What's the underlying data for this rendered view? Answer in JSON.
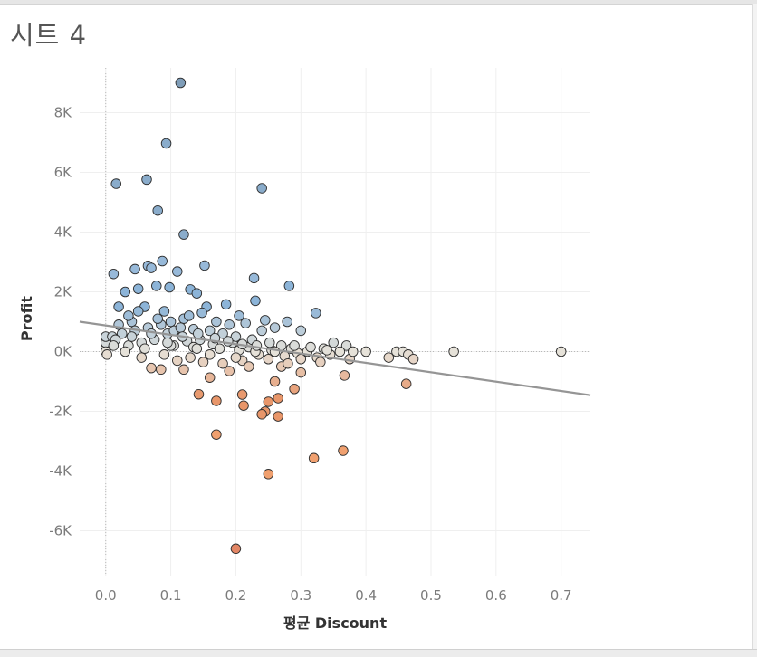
{
  "sheet": {
    "title": "시트 4"
  },
  "chart_data": {
    "type": "scatter",
    "title": "시트 4",
    "xlabel": "평균 Discount",
    "ylabel": "Profit",
    "xlim": [
      -0.04,
      0.745
    ],
    "ylim": [
      -7500,
      9500
    ],
    "x_ticks": [
      0.0,
      0.1,
      0.2,
      0.3,
      0.4,
      0.5,
      0.6,
      0.7
    ],
    "x_tick_labels": [
      "0.0",
      "0.1",
      "0.2",
      "0.3",
      "0.4",
      "0.5",
      "0.6",
      "0.7"
    ],
    "y_ticks": [
      -6000,
      -4000,
      -2000,
      0,
      2000,
      4000,
      6000,
      8000
    ],
    "y_tick_labels": [
      "-6K",
      "-4K",
      "-2K",
      "0K",
      "2K",
      "4K",
      "6K",
      "8K"
    ],
    "grid": true,
    "zero_line_x": true,
    "zero_line_y": true,
    "color_scale": {
      "negative": "#e8966a",
      "neutral": "#e6e2d9",
      "positive": "#8cb4d8"
    },
    "trend_line": {
      "color": "#959595",
      "x": [
        -0.04,
        0.745
      ],
      "y": [
        1000,
        -1460
      ]
    },
    "points": [
      [
        0.115,
        9000
      ],
      [
        0.093,
        6970
      ],
      [
        0.016,
        5620
      ],
      [
        0.063,
        5760
      ],
      [
        0.24,
        5470
      ],
      [
        0.08,
        4720
      ],
      [
        0.12,
        3920
      ],
      [
        0.087,
        3030
      ],
      [
        0.065,
        2870
      ],
      [
        0.07,
        2800
      ],
      [
        0.045,
        2760
      ],
      [
        0.152,
        2880
      ],
      [
        0.012,
        2600
      ],
      [
        0.11,
        2680
      ],
      [
        0.228,
        2460
      ],
      [
        0.282,
        2200
      ],
      [
        0.03,
        2000
      ],
      [
        0.05,
        2100
      ],
      [
        0.078,
        2200
      ],
      [
        0.098,
        2150
      ],
      [
        0.13,
        2080
      ],
      [
        0.14,
        1950
      ],
      [
        0.185,
        1580
      ],
      [
        0.23,
        1700
      ],
      [
        0.323,
        1290
      ],
      [
        0.02,
        1500
      ],
      [
        0.06,
        1500
      ],
      [
        0.09,
        1350
      ],
      [
        0.155,
        1500
      ],
      [
        0.205,
        1200
      ],
      [
        0.245,
        1050
      ],
      [
        0.279,
        1000
      ],
      [
        0.04,
        1000
      ],
      [
        0.12,
        1100
      ],
      [
        0.17,
        1000
      ],
      [
        0.215,
        950
      ],
      [
        0.26,
        800
      ],
      [
        0.3,
        700
      ],
      [
        0.35,
        300
      ],
      [
        0.37,
        200
      ],
      [
        0.4,
        0
      ],
      [
        0.435,
        -200
      ],
      [
        0.447,
        0
      ],
      [
        0.457,
        0
      ],
      [
        0.465,
        -100
      ],
      [
        0.473,
        -250
      ],
      [
        0.535,
        0
      ],
      [
        0.7,
        0
      ],
      [
        0.462,
        -1080
      ],
      [
        0.367,
        -800
      ],
      [
        0.3,
        -700
      ],
      [
        0.29,
        -1250
      ],
      [
        0.26,
        -1000
      ],
      [
        0.265,
        -1560
      ],
      [
        0.25,
        -1680
      ],
      [
        0.245,
        -2010
      ],
      [
        0.24,
        -2100
      ],
      [
        0.265,
        -2170
      ],
      [
        0.21,
        -1440
      ],
      [
        0.212,
        -1810
      ],
      [
        0.17,
        -1650
      ],
      [
        0.143,
        -1430
      ],
      [
        0.16,
        -870
      ],
      [
        0.17,
        -2780
      ],
      [
        0.25,
        -4100
      ],
      [
        0.32,
        -3570
      ],
      [
        0.365,
        -3320
      ],
      [
        0.2,
        -6600
      ],
      [
        0.27,
        -500
      ],
      [
        0.21,
        -300
      ],
      [
        0.07,
        -550
      ],
      [
        0.085,
        -600
      ],
      [
        0.12,
        -600
      ],
      [
        0.0,
        100
      ],
      [
        0.0,
        300
      ],
      [
        0.0,
        500
      ],
      [
        0.0,
        0
      ],
      [
        0.002,
        -100
      ],
      [
        0.01,
        500
      ],
      [
        0.025,
        600
      ],
      [
        0.035,
        200
      ],
      [
        0.055,
        300
      ],
      [
        0.075,
        400
      ],
      [
        0.095,
        600
      ],
      [
        0.105,
        200
      ],
      [
        0.125,
        350
      ],
      [
        0.135,
        150
      ],
      [
        0.145,
        400
      ],
      [
        0.165,
        250
      ],
      [
        0.175,
        100
      ],
      [
        0.195,
        300
      ],
      [
        0.205,
        50
      ],
      [
        0.22,
        150
      ],
      [
        0.235,
        -100
      ],
      [
        0.255,
        50
      ],
      [
        0.275,
        -150
      ],
      [
        0.285,
        100
      ],
      [
        0.295,
        -50
      ],
      [
        0.31,
        0
      ],
      [
        0.325,
        -200
      ],
      [
        0.335,
        100
      ],
      [
        0.345,
        -100
      ],
      [
        0.36,
        0
      ],
      [
        0.375,
        -250
      ],
      [
        0.38,
        0
      ],
      [
        0.015,
        400
      ],
      [
        0.045,
        700
      ],
      [
        0.065,
        800
      ],
      [
        0.085,
        900
      ],
      [
        0.105,
        700
      ],
      [
        0.115,
        800
      ],
      [
        0.135,
        750
      ],
      [
        0.16,
        700
      ],
      [
        0.18,
        600
      ],
      [
        0.2,
        500
      ],
      [
        0.225,
        400
      ],
      [
        0.27,
        200
      ],
      [
        0.315,
        150
      ],
      [
        0.02,
        900
      ],
      [
        0.035,
        1200
      ],
      [
        0.05,
        1350
      ],
      [
        0.08,
        1100
      ],
      [
        0.1,
        1000
      ],
      [
        0.128,
        1200
      ],
      [
        0.148,
        1300
      ],
      [
        0.19,
        900
      ],
      [
        0.24,
        700
      ],
      [
        0.055,
        -200
      ],
      [
        0.09,
        -100
      ],
      [
        0.11,
        -300
      ],
      [
        0.13,
        -200
      ],
      [
        0.15,
        -350
      ],
      [
        0.18,
        -400
      ],
      [
        0.19,
        -650
      ],
      [
        0.22,
        -500
      ],
      [
        0.25,
        -250
      ],
      [
        0.28,
        -400
      ],
      [
        0.33,
        -350
      ],
      [
        0.03,
        0
      ],
      [
        0.06,
        100
      ],
      [
        0.1,
        200
      ],
      [
        0.14,
        100
      ],
      [
        0.16,
        -100
      ],
      [
        0.2,
        -200
      ],
      [
        0.23,
        0
      ],
      [
        0.26,
        0
      ],
      [
        0.29,
        200
      ],
      [
        0.34,
        50
      ],
      [
        0.012,
        200
      ],
      [
        0.04,
        500
      ],
      [
        0.07,
        600
      ],
      [
        0.095,
        300
      ],
      [
        0.118,
        500
      ],
      [
        0.142,
        600
      ],
      [
        0.168,
        450
      ],
      [
        0.188,
        350
      ],
      [
        0.21,
        250
      ],
      [
        0.232,
        200
      ],
      [
        0.252,
        300
      ],
      [
        0.3,
        -250
      ]
    ]
  }
}
